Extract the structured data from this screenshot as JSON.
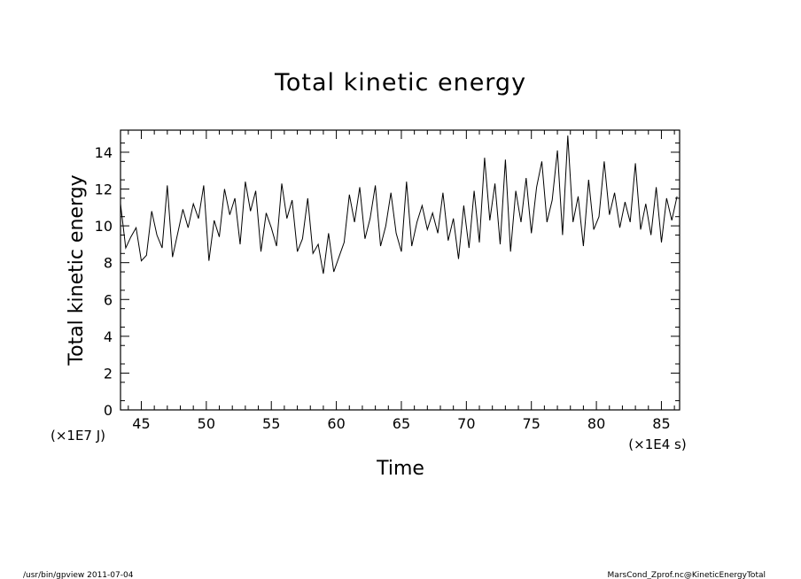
{
  "footer": {
    "left": "/usr/bin/gpview   2011-07-04",
    "right": "MarsCond_Zprof.nc@KineticEnergyTotal"
  },
  "chart_data": {
    "type": "line",
    "title": "Total kinetic energy",
    "xlabel": "Time",
    "ylabel": "Total kinetic energy",
    "x_unit": "(×1E4 s)",
    "y_unit": "(×1E7 J)",
    "xlim": [
      43.4,
      86.4
    ],
    "ylim": [
      0,
      15.2
    ],
    "grid": false,
    "x_ticks": [
      45,
      50,
      55,
      60,
      65,
      70,
      75,
      80,
      85
    ],
    "y_ticks": [
      0,
      2,
      4,
      6,
      8,
      10,
      12,
      14
    ],
    "line_color": "#000000",
    "series": [
      {
        "x": [
          43.4,
          43.8,
          44.2,
          44.6,
          45.0,
          45.4,
          45.8,
          46.2,
          46.6,
          47.0,
          47.4,
          47.8,
          48.2,
          48.6,
          49.0,
          49.4,
          49.8,
          50.2,
          50.6,
          51.0,
          51.4,
          51.8,
          52.2,
          52.6,
          53.0,
          53.4,
          53.8,
          54.2,
          54.6,
          55.0,
          55.4,
          55.8,
          56.2,
          56.6,
          57.0,
          57.4,
          57.8,
          58.2,
          58.6,
          59.0,
          59.4,
          59.8,
          60.2,
          60.6,
          61.0,
          61.4,
          61.8,
          62.2,
          62.6,
          63.0,
          63.4,
          63.8,
          64.2,
          64.6,
          65.0,
          65.4,
          65.8,
          66.2,
          66.6,
          67.0,
          67.4,
          67.8,
          68.2,
          68.6,
          69.0,
          69.4,
          69.8,
          70.2,
          70.6,
          71.0,
          71.4,
          71.8,
          72.2,
          72.6,
          73.0,
          73.4,
          73.8,
          74.2,
          74.6,
          75.0,
          75.4,
          75.8,
          76.2,
          76.6,
          77.0,
          77.4,
          77.8,
          78.2,
          78.6,
          79.0,
          79.4,
          79.8,
          80.2,
          80.6,
          81.0,
          81.4,
          81.8,
          82.2,
          82.6,
          83.0,
          83.4,
          83.8,
          84.2,
          84.6,
          85.0,
          85.4,
          85.8,
          86.2
        ],
        "y": [
          11.2,
          8.8,
          9.4,
          9.9,
          8.1,
          8.4,
          10.8,
          9.5,
          8.8,
          12.2,
          8.3,
          9.6,
          10.9,
          9.9,
          11.2,
          10.4,
          12.2,
          8.1,
          10.3,
          9.4,
          12.0,
          10.6,
          11.5,
          9.0,
          12.4,
          10.8,
          11.9,
          8.6,
          10.7,
          9.9,
          8.9,
          12.3,
          10.4,
          11.4,
          8.6,
          9.3,
          11.5,
          8.5,
          9.0,
          7.4,
          9.6,
          7.5,
          8.3,
          9.1,
          11.7,
          10.2,
          12.1,
          9.3,
          10.4,
          12.2,
          8.9,
          10.0,
          11.8,
          9.6,
          8.6,
          12.4,
          8.9,
          10.2,
          11.1,
          9.8,
          10.7,
          9.6,
          11.8,
          9.2,
          10.4,
          8.2,
          11.1,
          8.8,
          11.9,
          9.1,
          13.7,
          10.3,
          12.3,
          9.0,
          13.6,
          8.6,
          11.9,
          10.2,
          12.6,
          9.6,
          12.1,
          13.5,
          10.2,
          11.4,
          14.1,
          9.5,
          14.9,
          10.2,
          11.6,
          8.9,
          12.5,
          9.8,
          10.5,
          13.5,
          10.6,
          11.8,
          9.9,
          11.3,
          10.2,
          13.4,
          9.8,
          11.2,
          9.5,
          12.1,
          9.1,
          11.5,
          10.3,
          11.6
        ]
      }
    ]
  }
}
